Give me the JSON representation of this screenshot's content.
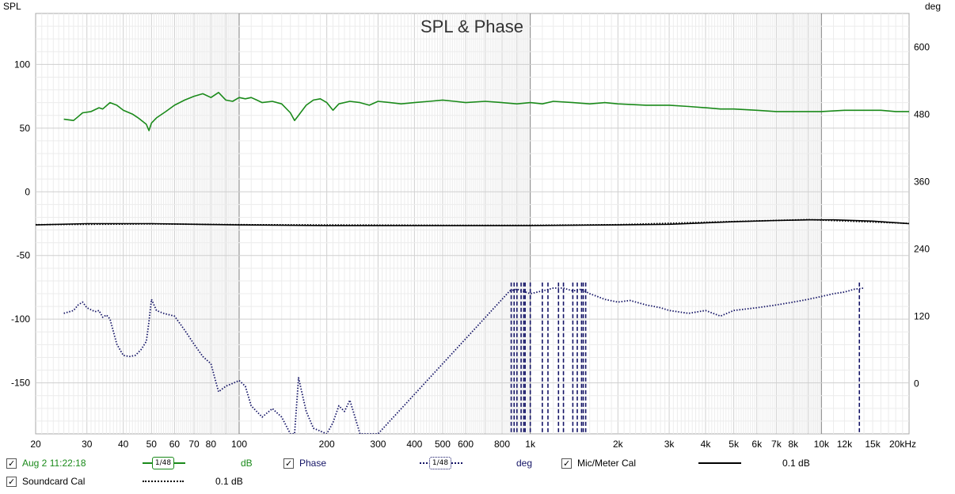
{
  "chart_data": {
    "type": "line",
    "title": "SPL & Phase",
    "xscale": "log",
    "xlim": [
      20,
      20000
    ],
    "xticks": [
      {
        "v": 20,
        "label": "20"
      },
      {
        "v": 30,
        "label": "30"
      },
      {
        "v": 40,
        "label": "40"
      },
      {
        "v": 50,
        "label": "50"
      },
      {
        "v": 60,
        "label": "60"
      },
      {
        "v": 70,
        "label": "70"
      },
      {
        "v": 80,
        "label": "80"
      },
      {
        "v": 100,
        "label": "100"
      },
      {
        "v": 200,
        "label": "200"
      },
      {
        "v": 300,
        "label": "300"
      },
      {
        "v": 400,
        "label": "400"
      },
      {
        "v": 500,
        "label": "500"
      },
      {
        "v": 600,
        "label": "600"
      },
      {
        "v": 800,
        "label": "800"
      },
      {
        "v": 1000,
        "label": "1k"
      },
      {
        "v": 2000,
        "label": "2k"
      },
      {
        "v": 3000,
        "label": "3k"
      },
      {
        "v": 4000,
        "label": "4k"
      },
      {
        "v": 5000,
        "label": "5k"
      },
      {
        "v": 6000,
        "label": "6k"
      },
      {
        "v": 7000,
        "label": "7k"
      },
      {
        "v": 8000,
        "label": "8k"
      },
      {
        "v": 10000,
        "label": "10k"
      },
      {
        "v": 12000,
        "label": "12k"
      },
      {
        "v": 15000,
        "label": "15k"
      },
      {
        "v": 20000,
        "label": "20kHz"
      }
    ],
    "y_left": {
      "label": "SPL",
      "ylim": [
        -190,
        140
      ],
      "ticks": [
        100,
        50,
        0,
        -50,
        -100,
        -150
      ]
    },
    "y_right": {
      "label": "deg",
      "ylim": [
        -90,
        660
      ],
      "ticks": [
        600,
        480,
        360,
        240,
        120,
        0
      ]
    },
    "grid": true,
    "series": [
      {
        "name": "Aug 2 11:22:18",
        "axis": "left",
        "color": "#1a8a1a",
        "style": "solid",
        "points": [
          [
            25,
            57
          ],
          [
            27,
            56
          ],
          [
            28,
            59
          ],
          [
            29,
            62
          ],
          [
            31,
            63
          ],
          [
            33,
            66
          ],
          [
            34,
            65
          ],
          [
            36,
            70
          ],
          [
            38,
            68
          ],
          [
            40,
            64
          ],
          [
            43,
            61
          ],
          [
            45,
            58
          ],
          [
            48,
            53
          ],
          [
            49,
            48
          ],
          [
            50,
            54
          ],
          [
            52,
            58
          ],
          [
            56,
            63
          ],
          [
            60,
            68
          ],
          [
            65,
            72
          ],
          [
            70,
            75
          ],
          [
            75,
            77
          ],
          [
            80,
            74
          ],
          [
            85,
            78
          ],
          [
            90,
            72
          ],
          [
            95,
            71
          ],
          [
            100,
            74
          ],
          [
            105,
            73
          ],
          [
            110,
            74
          ],
          [
            115,
            72
          ],
          [
            120,
            70
          ],
          [
            130,
            71
          ],
          [
            140,
            69
          ],
          [
            150,
            62
          ],
          [
            155,
            56
          ],
          [
            160,
            60
          ],
          [
            170,
            68
          ],
          [
            180,
            72
          ],
          [
            190,
            73
          ],
          [
            200,
            70
          ],
          [
            210,
            64
          ],
          [
            220,
            69
          ],
          [
            240,
            71
          ],
          [
            260,
            70
          ],
          [
            280,
            68
          ],
          [
            300,
            71
          ],
          [
            330,
            70
          ],
          [
            360,
            69
          ],
          [
            400,
            70
          ],
          [
            450,
            71
          ],
          [
            500,
            72
          ],
          [
            550,
            71
          ],
          [
            600,
            70
          ],
          [
            700,
            71
          ],
          [
            800,
            70
          ],
          [
            900,
            69
          ],
          [
            1000,
            70
          ],
          [
            1100,
            69
          ],
          [
            1200,
            71
          ],
          [
            1400,
            70
          ],
          [
            1600,
            69
          ],
          [
            1800,
            70
          ],
          [
            2000,
            69
          ],
          [
            2500,
            68
          ],
          [
            3000,
            68
          ],
          [
            3500,
            67
          ],
          [
            4000,
            66
          ],
          [
            4500,
            65
          ],
          [
            5000,
            65
          ],
          [
            6000,
            64
          ],
          [
            7000,
            63
          ],
          [
            8000,
            63
          ],
          [
            9000,
            63
          ],
          [
            10000,
            63
          ],
          [
            12000,
            64
          ],
          [
            14000,
            64
          ],
          [
            16000,
            64
          ],
          [
            18000,
            63
          ],
          [
            20000,
            63
          ]
        ]
      },
      {
        "name": "Phase",
        "axis": "right",
        "color": "#141466",
        "style": "dotted",
        "points": [
          [
            25,
            125
          ],
          [
            27,
            130
          ],
          [
            28,
            140
          ],
          [
            29,
            145
          ],
          [
            30,
            135
          ],
          [
            32,
            128
          ],
          [
            33,
            130
          ],
          [
            34,
            118
          ],
          [
            35,
            122
          ],
          [
            36,
            115
          ],
          [
            38,
            70
          ],
          [
            40,
            50
          ],
          [
            42,
            48
          ],
          [
            44,
            50
          ],
          [
            46,
            60
          ],
          [
            48,
            75
          ],
          [
            49,
            110
          ],
          [
            50,
            150
          ],
          [
            52,
            130
          ],
          [
            55,
            125
          ],
          [
            60,
            120
          ],
          [
            65,
            95
          ],
          [
            70,
            70
          ],
          [
            75,
            48
          ],
          [
            80,
            35
          ],
          [
            85,
            -15
          ],
          [
            90,
            -5
          ],
          [
            95,
            0
          ],
          [
            100,
            5
          ],
          [
            105,
            -5
          ],
          [
            110,
            -40
          ],
          [
            120,
            -60
          ],
          [
            130,
            -45
          ],
          [
            140,
            -60
          ],
          [
            150,
            -90
          ],
          [
            155,
            -90
          ],
          [
            160,
            10
          ],
          [
            170,
            -50
          ],
          [
            180,
            -80
          ],
          [
            200,
            -90
          ],
          [
            210,
            -70
          ],
          [
            220,
            -40
          ],
          [
            230,
            -50
          ],
          [
            240,
            -30
          ],
          [
            250,
            -60
          ],
          [
            260,
            -90
          ],
          [
            300,
            -90
          ],
          [
            850,
            165
          ],
          [
            900,
            168
          ],
          [
            1000,
            160
          ],
          [
            1100,
            165
          ],
          [
            1200,
            170
          ],
          [
            1300,
            170
          ],
          [
            1400,
            165
          ],
          [
            1500,
            168
          ],
          [
            1600,
            160
          ],
          [
            1700,
            155
          ],
          [
            1800,
            150
          ],
          [
            2000,
            145
          ],
          [
            2200,
            148
          ],
          [
            2500,
            140
          ],
          [
            2800,
            135
          ],
          [
            3000,
            130
          ],
          [
            3500,
            125
          ],
          [
            4000,
            130
          ],
          [
            4500,
            120
          ],
          [
            5000,
            130
          ],
          [
            6000,
            135
          ],
          [
            7000,
            140
          ],
          [
            8000,
            145
          ],
          [
            9000,
            150
          ],
          [
            10000,
            155
          ],
          [
            11000,
            160
          ],
          [
            12000,
            163
          ],
          [
            13000,
            168
          ],
          [
            14000,
            170
          ]
        ]
      },
      {
        "name": "Mic/Meter Cal",
        "axis": "left",
        "color": "#000000",
        "style": "solid",
        "points": [
          [
            20,
            -26
          ],
          [
            30,
            -25
          ],
          [
            50,
            -25
          ],
          [
            100,
            -26
          ],
          [
            200,
            -26.5
          ],
          [
            500,
            -26.5
          ],
          [
            1000,
            -26.5
          ],
          [
            2000,
            -26
          ],
          [
            3000,
            -25.5
          ],
          [
            5000,
            -23.5
          ],
          [
            7000,
            -22.5
          ],
          [
            9000,
            -22
          ],
          [
            11000,
            -22
          ],
          [
            15000,
            -23
          ],
          [
            20000,
            -25
          ]
        ]
      },
      {
        "name": "Soundcard Cal",
        "axis": "left",
        "color": "#000000",
        "style": "dotted",
        "points": [
          [
            20,
            -25.8
          ],
          [
            50,
            -25.2
          ],
          [
            100,
            -25.8
          ],
          [
            500,
            -26.3
          ],
          [
            1000,
            -26.3
          ],
          [
            2000,
            -25.8
          ],
          [
            5000,
            -23.3
          ],
          [
            9000,
            -21.8
          ],
          [
            20000,
            -24.8
          ]
        ]
      }
    ],
    "phase_wrap_verticals": [
      860,
      880,
      900,
      930,
      950,
      960,
      1000,
      1100,
      1150,
      1250,
      1300,
      1400,
      1450,
      1500,
      1520,
      1550,
      13500
    ]
  },
  "legend": {
    "items": [
      {
        "label": "Aug 2 11:22:18",
        "smoothing": "1/48",
        "unit": "dB",
        "color": "#1a8a1a"
      },
      {
        "label": "Phase",
        "smoothing": "1/48",
        "unit": "deg",
        "color": "#141466"
      },
      {
        "label": "Mic/Meter Cal",
        "unit": "0.1 dB",
        "color": "#000000"
      },
      {
        "label": "Soundcard Cal",
        "unit": "0.1 dB",
        "color": "#000000"
      }
    ]
  }
}
